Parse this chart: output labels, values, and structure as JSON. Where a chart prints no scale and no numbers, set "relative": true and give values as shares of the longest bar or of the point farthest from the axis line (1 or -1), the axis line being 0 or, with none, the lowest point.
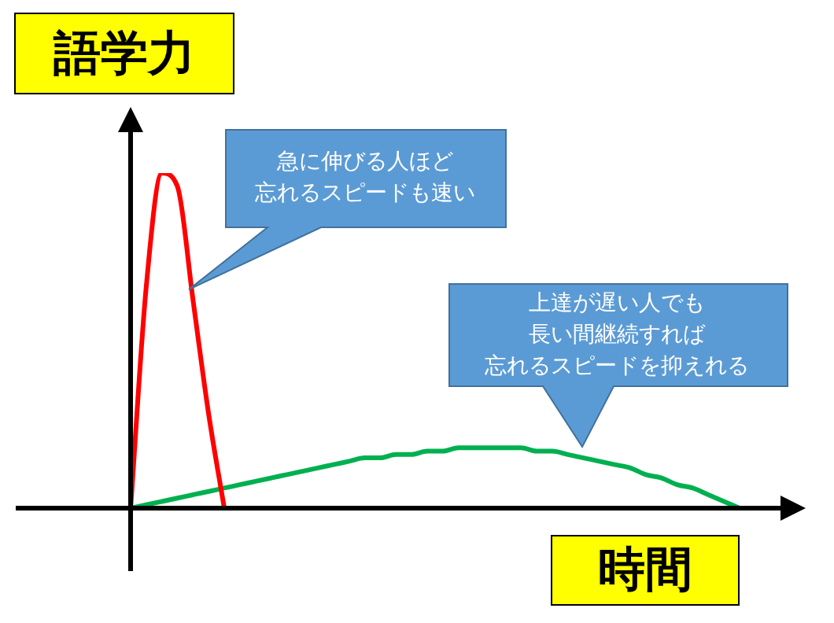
{
  "chart_data": {
    "type": "line",
    "relative": true,
    "xlabel": "時間",
    "ylabel": "語学力",
    "annotations": [
      "急に伸びる人ほど忘れるスピードも速い",
      "上達が遅い人でも長い間継続すれば忘れるスピードを抑えれる"
    ],
    "categories": [
      null,
      null,
      null,
      null,
      null,
      null,
      null,
      null,
      null,
      null,
      null,
      null,
      null,
      null,
      null,
      null,
      null,
      null,
      null,
      null,
      null,
      null,
      null,
      null,
      null,
      null,
      null,
      null,
      null,
      null,
      null,
      null,
      null,
      null,
      null,
      null,
      null,
      null,
      null,
      null
    ],
    "series": [
      {
        "color": "#ff0000",
        "values": [
          0,
          0.66,
          1,
          0.96,
          0.62,
          0.28,
          0,
          null,
          null,
          null,
          null,
          null,
          null,
          null,
          null,
          null,
          null,
          null,
          null,
          null,
          null,
          null,
          null,
          null,
          null,
          null,
          null,
          null,
          null,
          null,
          null,
          null,
          null,
          null,
          null,
          null,
          null,
          null,
          null,
          null
        ]
      },
      {
        "color": "#00b050",
        "values": [
          0,
          0.01,
          0.02,
          0.03,
          0.04,
          0.05,
          0.06,
          0.07,
          0.08,
          0.09,
          0.1,
          0.11,
          0.12,
          0.13,
          0.14,
          0.15,
          0.15,
          0.16,
          0.16,
          0.17,
          0.17,
          0.18,
          0.18,
          0.18,
          0.18,
          0.18,
          0.17,
          0.17,
          0.16,
          0.15,
          0.14,
          0.13,
          0.12,
          0.1,
          0.09,
          0.07,
          0.06,
          0.04,
          0.02,
          0
        ]
      }
    ],
    "legend": false
  }
}
